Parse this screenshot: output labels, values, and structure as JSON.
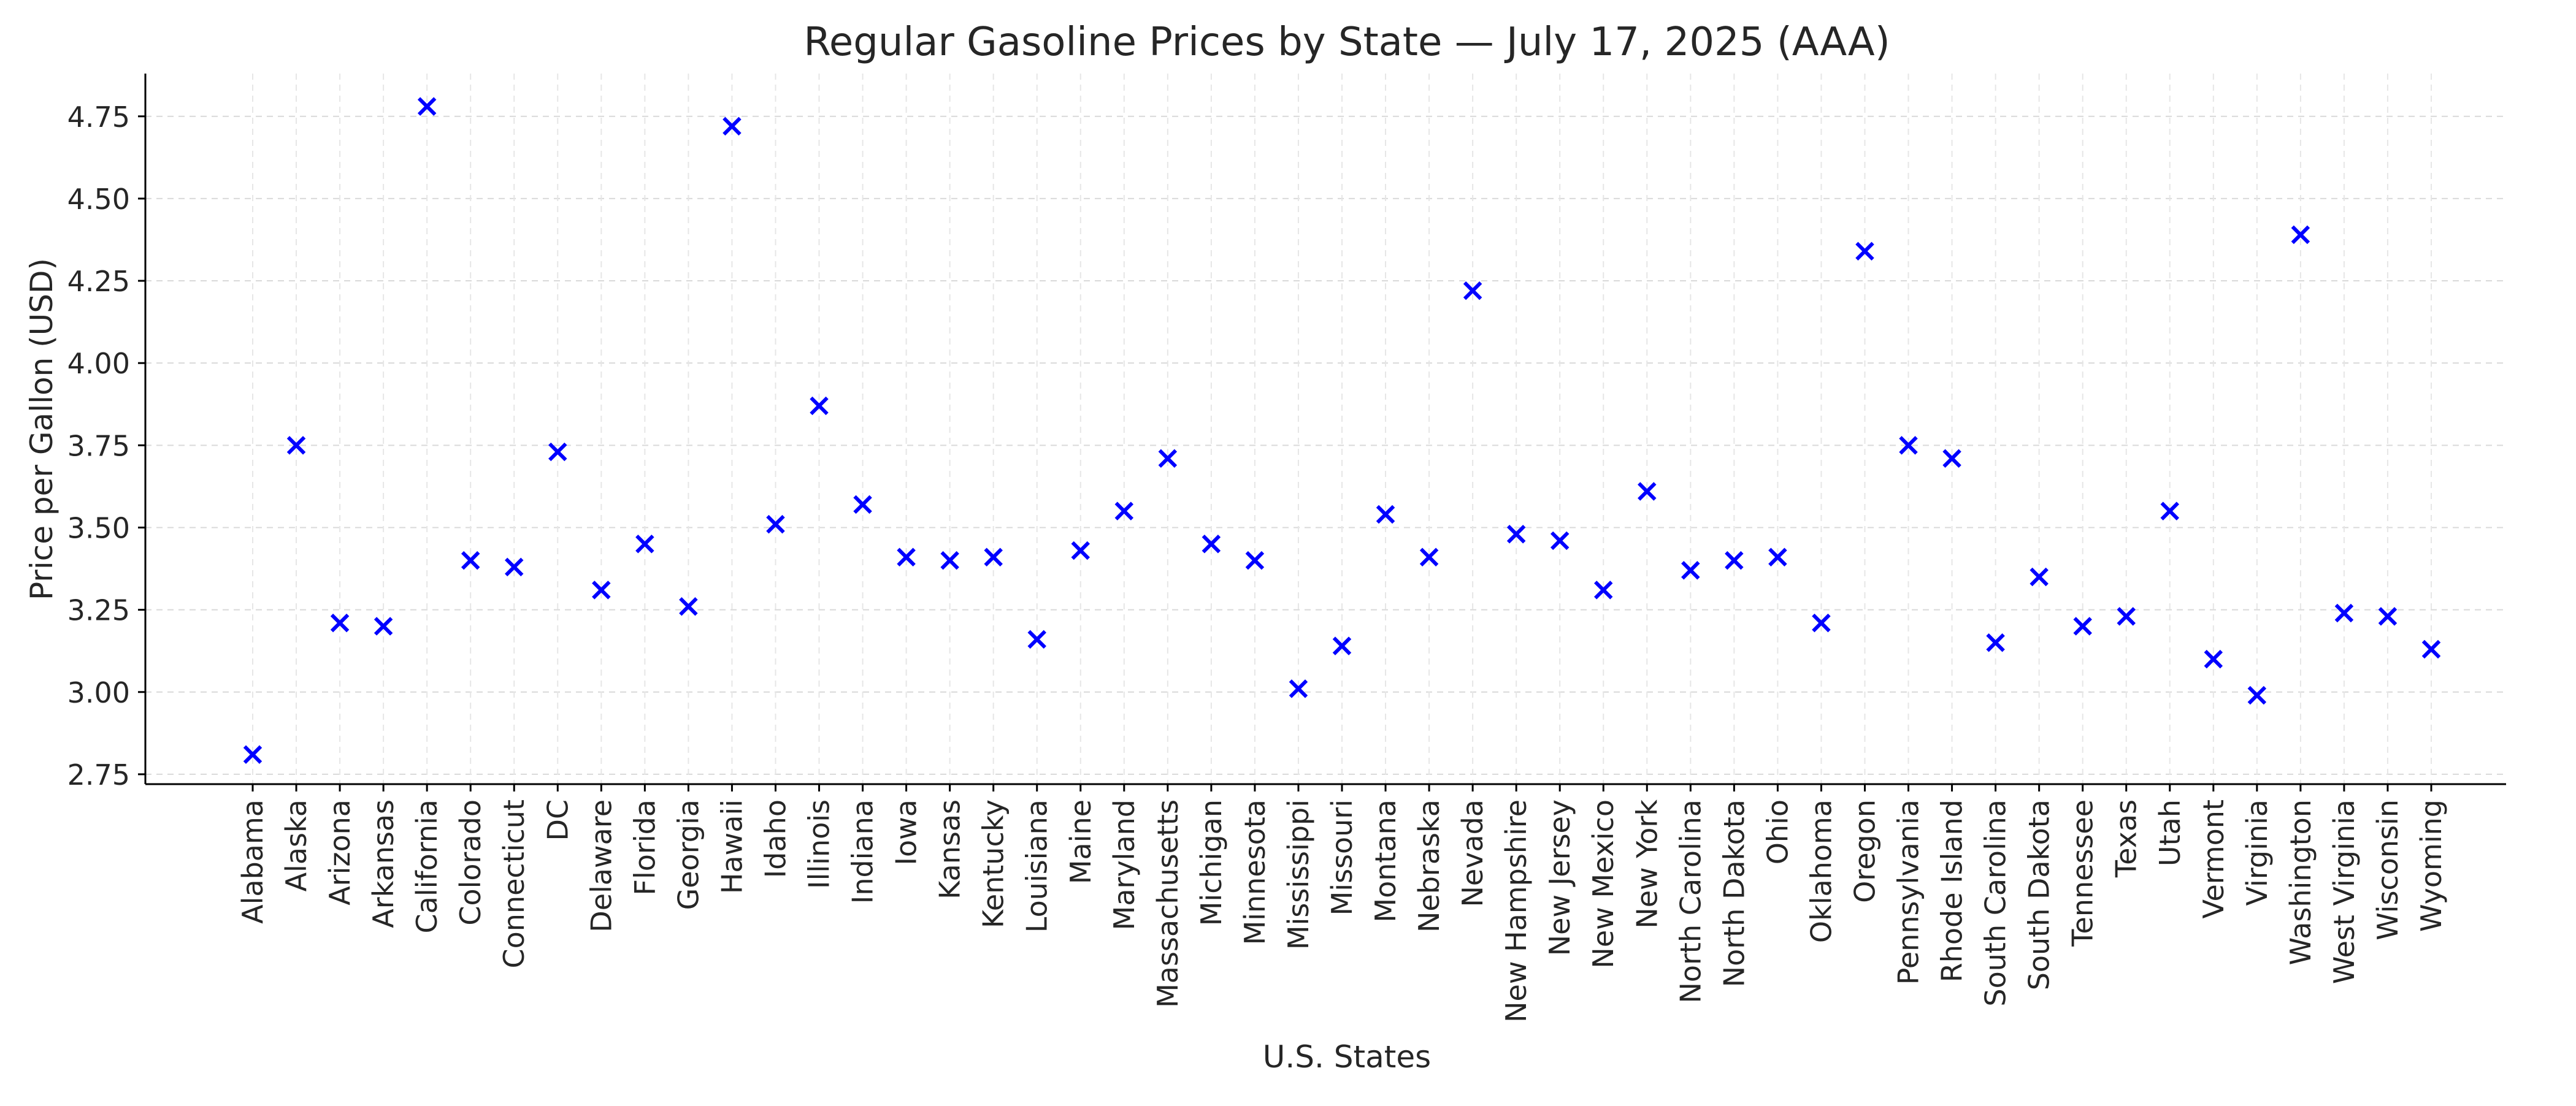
{
  "chart_data": {
    "type": "scatter",
    "title": "Regular Gasoline Prices by State — July 17, 2025 (AAA)",
    "xlabel": "U.S. States",
    "ylabel": "Price per Gallon (USD)",
    "ylim": [
      2.72,
      4.88
    ],
    "yticks": [
      "2.75",
      "3.00",
      "3.25",
      "3.50",
      "3.75",
      "4.00",
      "4.25",
      "4.50",
      "4.75"
    ],
    "grid": true,
    "marker": "x",
    "marker_color": "#0000ff",
    "categories": [
      "Alabama",
      "Alaska",
      "Arizona",
      "Arkansas",
      "California",
      "Colorado",
      "Connecticut",
      "DC",
      "Delaware",
      "Florida",
      "Georgia",
      "Hawaii",
      "Idaho",
      "Illinois",
      "Indiana",
      "Iowa",
      "Kansas",
      "Kentucky",
      "Louisiana",
      "Maine",
      "Maryland",
      "Massachusetts",
      "Michigan",
      "Minnesota",
      "Mississippi",
      "Missouri",
      "Montana",
      "Nebraska",
      "Nevada",
      "New Hampshire",
      "New Jersey",
      "New Mexico",
      "New York",
      "North Carolina",
      "North Dakota",
      "Ohio",
      "Oklahoma",
      "Oregon",
      "Pennsylvania",
      "Rhode Island",
      "South Carolina",
      "South Dakota",
      "Tennessee",
      "Texas",
      "Utah",
      "Vermont",
      "Virginia",
      "Washington",
      "West Virginia",
      "Wisconsin",
      "Wyoming"
    ],
    "values": [
      2.81,
      3.75,
      3.21,
      3.2,
      4.78,
      3.4,
      3.38,
      3.73,
      3.31,
      3.45,
      3.26,
      4.72,
      3.51,
      3.87,
      3.57,
      3.41,
      3.4,
      3.41,
      3.16,
      3.43,
      3.55,
      3.71,
      3.45,
      3.4,
      3.01,
      3.14,
      3.54,
      3.41,
      4.22,
      3.48,
      3.46,
      3.31,
      3.61,
      3.37,
      3.4,
      3.41,
      3.21,
      4.34,
      3.75,
      3.71,
      3.15,
      3.35,
      3.2,
      3.23,
      3.55,
      3.1,
      2.99,
      4.39,
      3.24,
      3.23,
      3.13
    ]
  }
}
